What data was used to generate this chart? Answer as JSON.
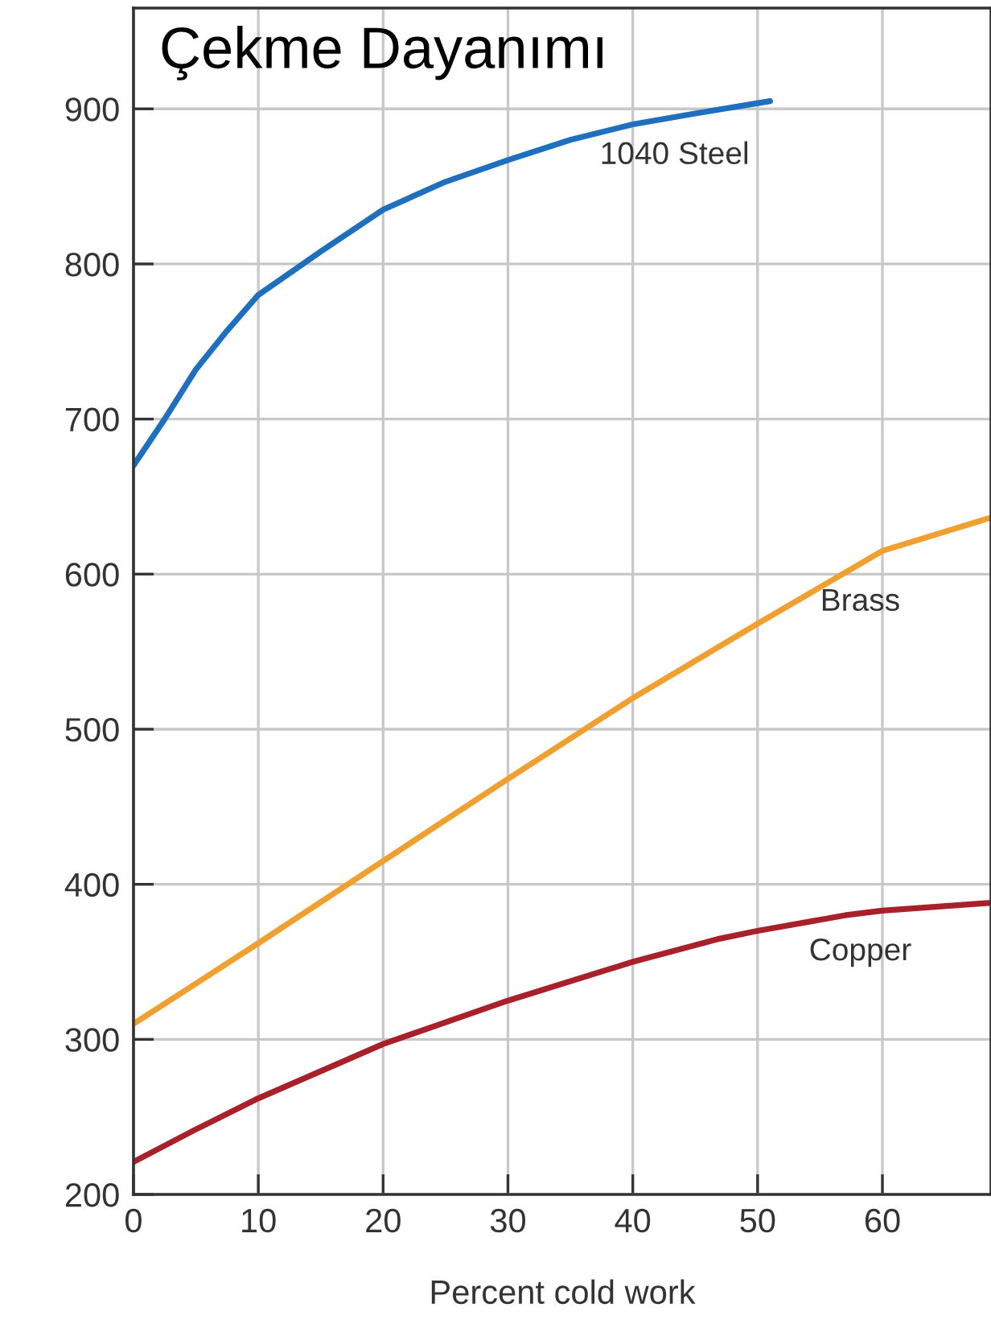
{
  "chart_data": {
    "type": "line",
    "title": "Çekme Dayanımı",
    "xlabel": "Percent cold work",
    "series": [
      {
        "name": "1040 Steel",
        "color": "#1f6fbf",
        "x": [
          0,
          2.5,
          5,
          7.5,
          10,
          15,
          20,
          25,
          30,
          35,
          40,
          45,
          51
        ],
        "values": [
          670,
          700,
          732,
          757,
          780,
          808,
          835,
          853,
          867,
          880,
          890,
          897,
          905
        ]
      },
      {
        "name": "Brass",
        "color": "#f0a030",
        "x": [
          0,
          10,
          20,
          30,
          40,
          50,
          60,
          68.5
        ],
        "values": [
          310,
          362,
          415,
          468,
          520,
          568,
          615,
          636
        ]
      },
      {
        "name": "Copper",
        "color": "#a8202a",
        "x": [
          0,
          5,
          10,
          20,
          30,
          40,
          47,
          50,
          57,
          60,
          68.5
        ],
        "values": [
          221,
          242,
          262,
          297,
          325,
          350,
          365,
          370,
          380,
          383,
          388
        ]
      }
    ],
    "xlim": [
      0,
      68.7
    ],
    "ylim": [
      200,
      965
    ],
    "xticks": [
      0,
      10,
      20,
      30,
      40,
      50,
      60
    ],
    "yticks": [
      200,
      300,
      400,
      500,
      600,
      700,
      800,
      900
    ],
    "grid": true,
    "line_style": "solid"
  }
}
